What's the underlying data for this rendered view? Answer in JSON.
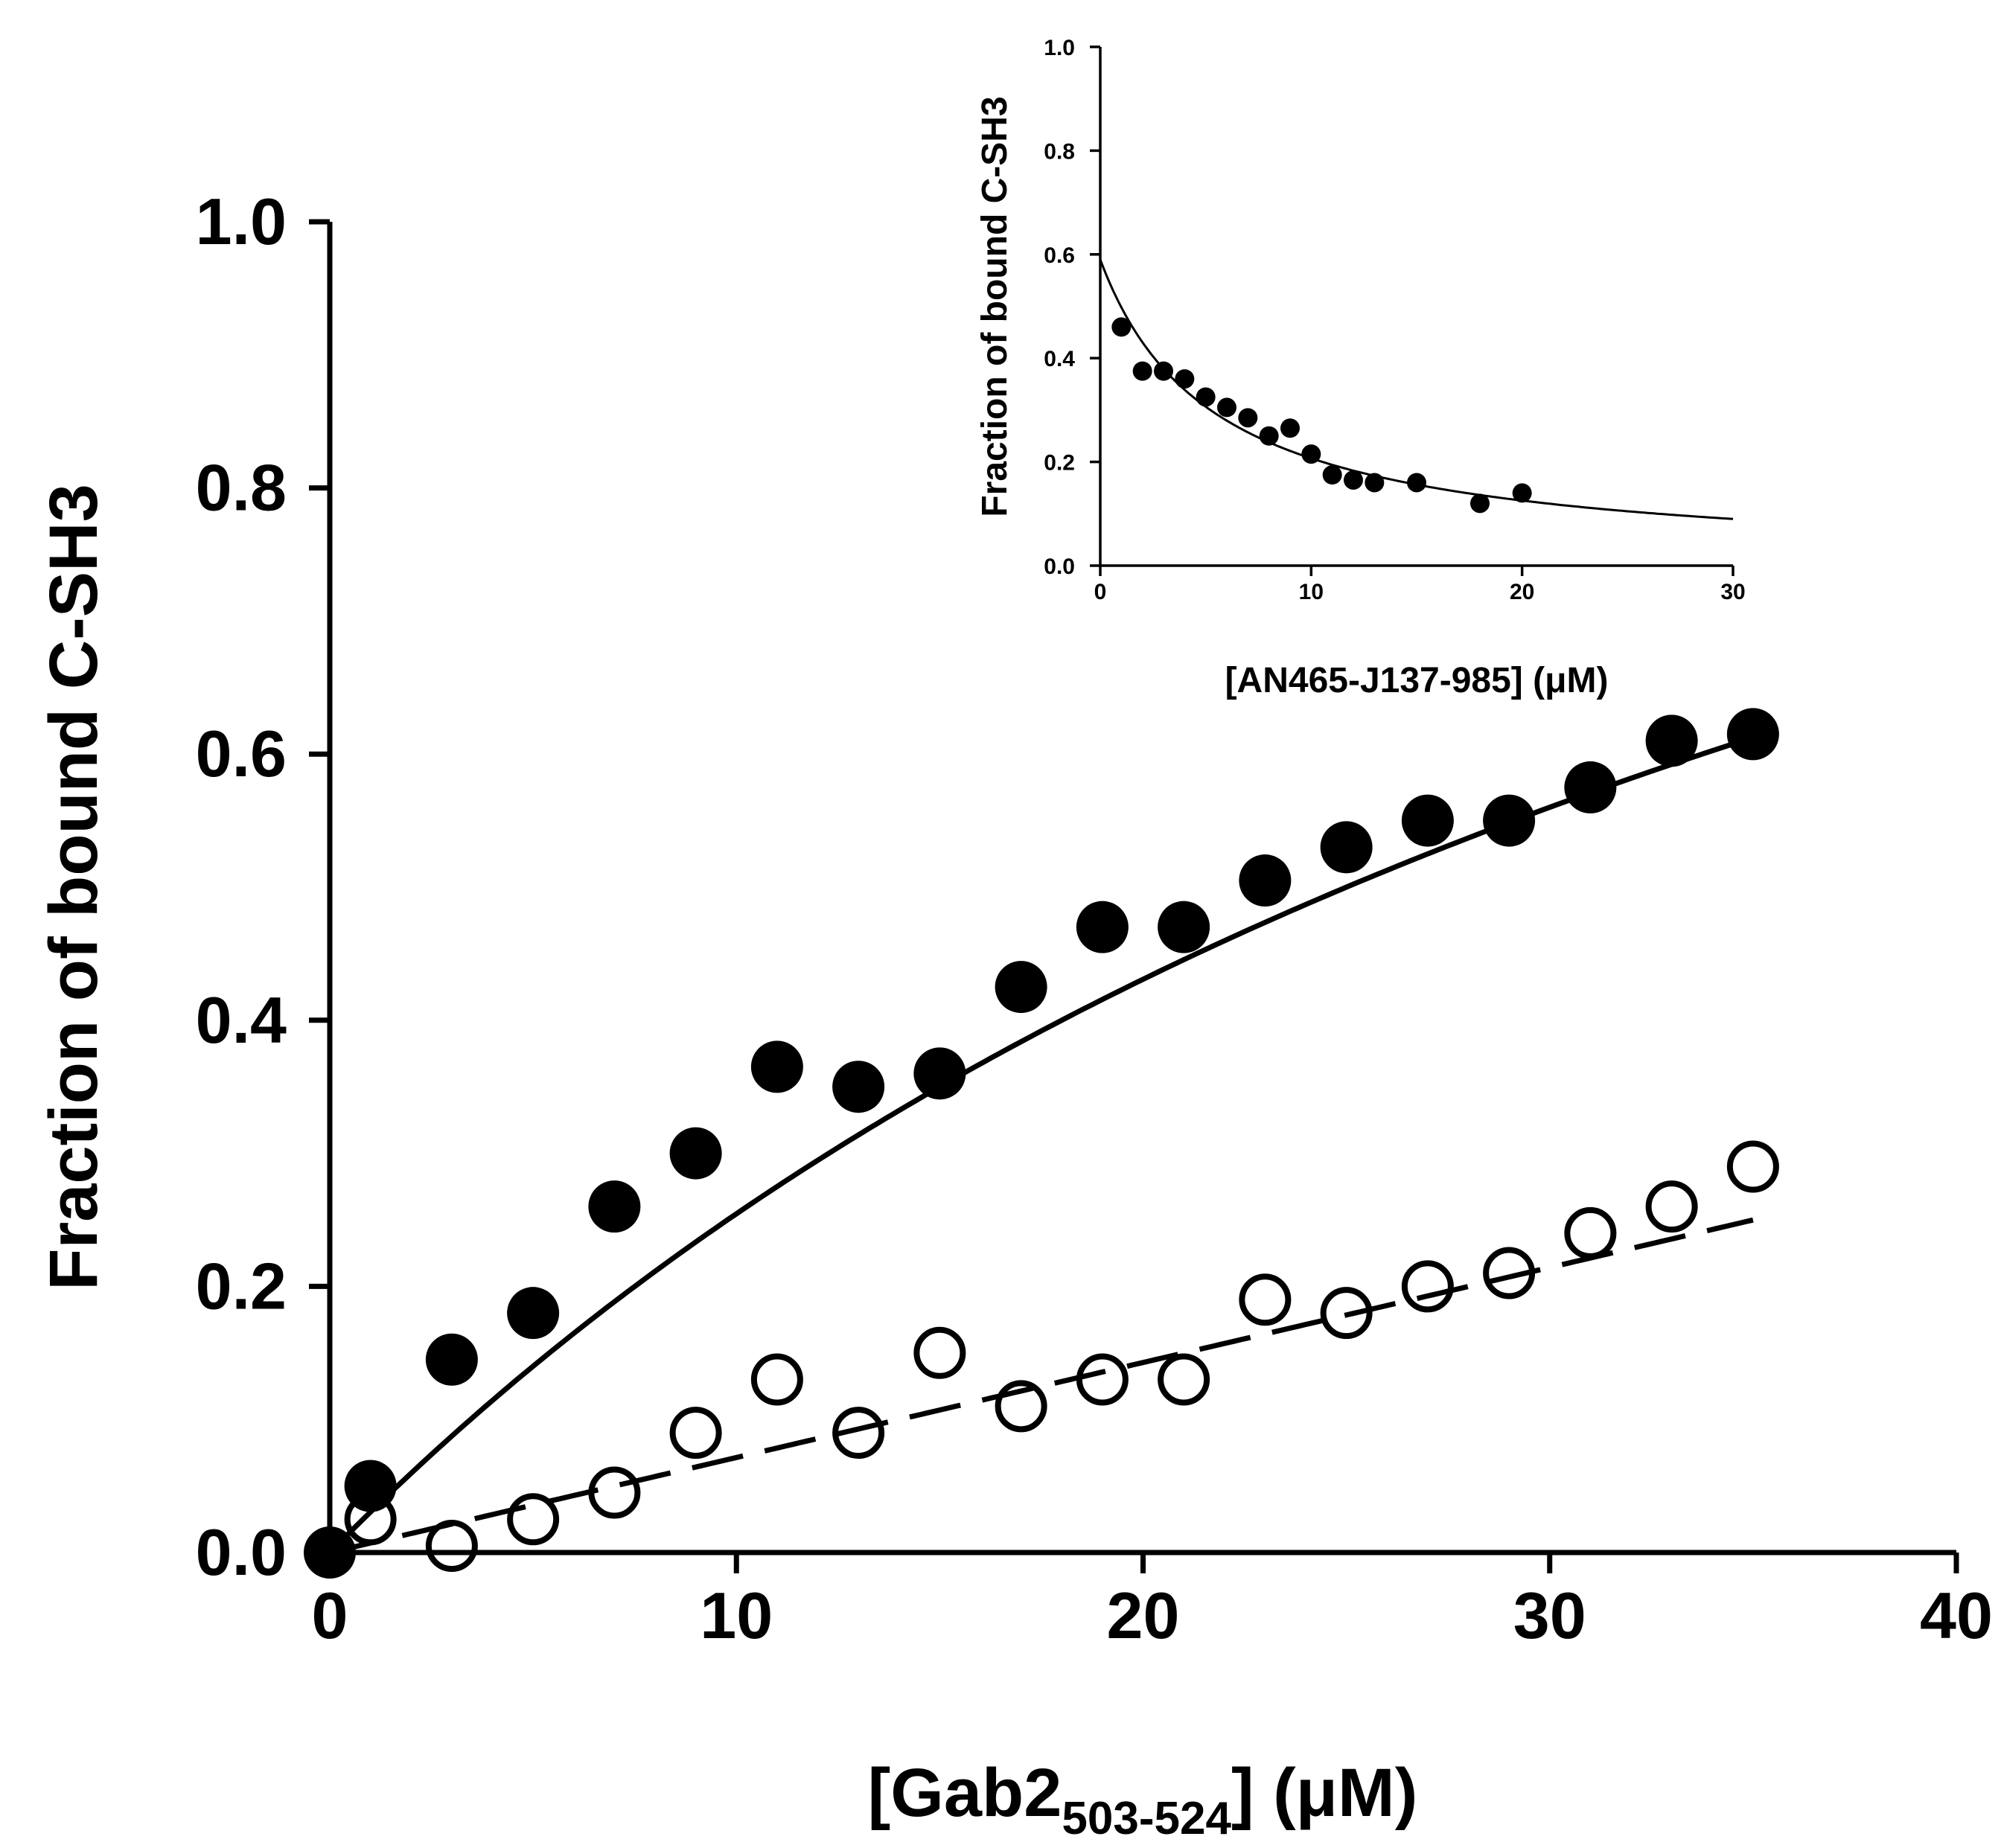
{
  "chart_data": [
    {
      "id": "main",
      "type": "scatter",
      "title": "",
      "xlabel_parts": {
        "prefix": "[Gab2",
        "subscript": "503-524",
        "suffix": "] (μM)"
      },
      "ylabel": "Fraction of bound C-SH3",
      "xlim": [
        0,
        40
      ],
      "ylim": [
        0,
        1.0
      ],
      "x_ticks": [
        0,
        10,
        20,
        30,
        40
      ],
      "x_tick_labels": [
        "0",
        "10",
        "20",
        "30",
        "40"
      ],
      "y_ticks": [
        0,
        0.2,
        0.4,
        0.6,
        0.8,
        1.0
      ],
      "y_tick_labels": [
        "0.0",
        "0.2",
        "0.4",
        "0.6",
        "0.8",
        "1.0"
      ],
      "grid": false,
      "series": [
        {
          "name": "filled",
          "marker": "filled-circle",
          "x": [
            0,
            1,
            3,
            5,
            7,
            9,
            11,
            13,
            15,
            17,
            19,
            21,
            23,
            25,
            27,
            29,
            31,
            33,
            35
          ],
          "y": [
            0.0,
            0.05,
            0.145,
            0.18,
            0.26,
            0.3,
            0.365,
            0.35,
            0.36,
            0.425,
            0.47,
            0.47,
            0.505,
            0.53,
            0.55,
            0.55,
            0.575,
            0.61,
            0.615
          ],
          "fit": {
            "style": "solid",
            "model": "binding",
            "bmax": 1.4,
            "kd": 45,
            "x_range": [
              0,
              35
            ]
          }
        },
        {
          "name": "open",
          "marker": "open-circle",
          "x": [
            1,
            3,
            5,
            7,
            9,
            11,
            13,
            15,
            17,
            19,
            21,
            23,
            25,
            27,
            29,
            31,
            33,
            35
          ],
          "y": [
            0.025,
            0.005,
            0.025,
            0.045,
            0.09,
            0.13,
            0.09,
            0.15,
            0.11,
            0.13,
            0.13,
            0.19,
            0.18,
            0.2,
            0.21,
            0.24,
            0.26,
            0.29
          ],
          "fit": {
            "style": "dashed",
            "model": "linear",
            "slope": 0.00714,
            "intercept": 0.0,
            "x_range": [
              0,
              35
            ]
          }
        }
      ]
    },
    {
      "id": "inset",
      "type": "scatter",
      "title": "",
      "xlabel": "[AN465-J137-985] (μM)",
      "ylabel": "Fraction of bound C-SH3",
      "xlim": [
        0,
        30
      ],
      "ylim": [
        0,
        1.0
      ],
      "x_ticks": [
        0,
        10,
        20,
        30
      ],
      "x_tick_labels": [
        "0",
        "10",
        "20",
        "30"
      ],
      "y_ticks": [
        0,
        0.2,
        0.4,
        0.6,
        0.8,
        1.0
      ],
      "y_tick_labels": [
        "0.0",
        "0.2",
        "0.4",
        "0.6",
        "0.8",
        "1.0"
      ],
      "grid": false,
      "series": [
        {
          "name": "filled",
          "marker": "filled-circle",
          "x": [
            1,
            2,
            3,
            4,
            5,
            6,
            7,
            8,
            9,
            10,
            11,
            12,
            13,
            15,
            18,
            20
          ],
          "y": [
            0.46,
            0.375,
            0.375,
            0.36,
            0.325,
            0.305,
            0.285,
            0.25,
            0.265,
            0.215,
            0.175,
            0.165,
            0.16,
            0.16,
            0.12,
            0.14
          ],
          "fit": {
            "style": "solid",
            "model": "decay",
            "y0": 0.59,
            "ic50": 5.4,
            "x_range": [
              0,
              30
            ]
          }
        }
      ]
    }
  ]
}
